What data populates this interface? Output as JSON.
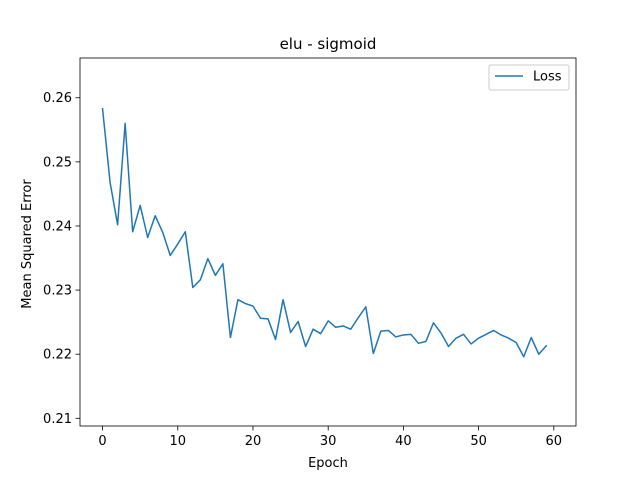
{
  "chart_data": {
    "type": "line",
    "title": "elu - sigmoid",
    "xlabel": "Epoch",
    "ylabel": "Mean Squared Error",
    "xlim": [
      -3,
      62.95
    ],
    "ylim": [
      0.2088,
      0.2662
    ],
    "xticks": [
      0,
      10,
      20,
      30,
      40,
      50,
      60
    ],
    "yticks": [
      0.21,
      0.22,
      0.23,
      0.24,
      0.25,
      0.26
    ],
    "grid": false,
    "legend_position": "top-right",
    "series": [
      {
        "name": "Loss",
        "color": "#1f77b4",
        "x": [
          0,
          1,
          2,
          3,
          4,
          5,
          6,
          7,
          8,
          9,
          10,
          11,
          12,
          13,
          14,
          15,
          16,
          17,
          18,
          19,
          20,
          21,
          22,
          23,
          24,
          25,
          26,
          27,
          28,
          29,
          30,
          31,
          32,
          33,
          34,
          35,
          36,
          37,
          38,
          39,
          40,
          41,
          42,
          43,
          44,
          45,
          46,
          47,
          48,
          49,
          50,
          51,
          52,
          53,
          54,
          55,
          56,
          57,
          58,
          59
        ],
        "y": [
          0.2583,
          0.2468,
          0.2402,
          0.256,
          0.2391,
          0.2432,
          0.2382,
          0.2416,
          0.239,
          0.2354,
          0.2372,
          0.2391,
          0.2304,
          0.2316,
          0.2349,
          0.2323,
          0.2341,
          0.2226,
          0.2285,
          0.2279,
          0.2275,
          0.2256,
          0.2255,
          0.2223,
          0.2285,
          0.2234,
          0.2251,
          0.2212,
          0.2239,
          0.2232,
          0.2252,
          0.2242,
          0.2244,
          0.2239,
          0.2257,
          0.2274,
          0.2201,
          0.2236,
          0.2237,
          0.2227,
          0.223,
          0.2231,
          0.2217,
          0.222,
          0.2249,
          0.2233,
          0.2212,
          0.2225,
          0.2231,
          0.2216,
          0.2225,
          0.2231,
          0.2237,
          0.223,
          0.2225,
          0.2218,
          0.2196,
          0.2226,
          0.22,
          0.2213
        ]
      }
    ]
  }
}
